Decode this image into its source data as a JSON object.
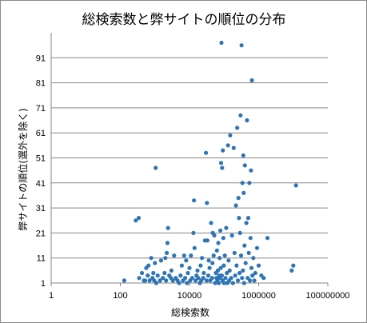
{
  "chart_data": {
    "type": "scatter",
    "title": "総検索数と弊サイトの順位の分布",
    "xlabel": "総検索数",
    "ylabel": "弊サイトの順位(選外を除く)",
    "x_scale": "log",
    "xlim": [
      1,
      100000000
    ],
    "ylim": [
      1,
      101
    ],
    "x_ticks": [
      "1",
      "100",
      "10000",
      "1000000",
      "100000000"
    ],
    "y_ticks": [
      "1",
      "11",
      "21",
      "31",
      "41",
      "51",
      "61",
      "71",
      "81",
      "91"
    ],
    "grid": "horizontal",
    "legend": "none",
    "marker_color": "#2e75b6",
    "series": [
      {
        "points": [
          [
            130,
            2
          ],
          [
            280,
            26
          ],
          [
            340,
            27
          ],
          [
            350,
            3
          ],
          [
            420,
            5
          ],
          [
            480,
            2
          ],
          [
            520,
            2
          ],
          [
            560,
            7
          ],
          [
            620,
            4
          ],
          [
            650,
            8
          ],
          [
            700,
            2
          ],
          [
            780,
            11
          ],
          [
            850,
            3
          ],
          [
            900,
            5
          ],
          [
            950,
            2
          ],
          [
            1000,
            9
          ],
          [
            1050,
            47
          ],
          [
            1100,
            1
          ],
          [
            1200,
            4
          ],
          [
            1400,
            2
          ],
          [
            1500,
            10
          ],
          [
            1700,
            3
          ],
          [
            1900,
            5
          ],
          [
            2000,
            11
          ],
          [
            2100,
            2
          ],
          [
            2200,
            13
          ],
          [
            2300,
            17
          ],
          [
            2400,
            23
          ],
          [
            2600,
            4
          ],
          [
            2900,
            3
          ],
          [
            3000,
            6
          ],
          [
            3300,
            2
          ],
          [
            3600,
            12
          ],
          [
            4000,
            3
          ],
          [
            4500,
            2
          ],
          [
            5000,
            1
          ],
          [
            5500,
            4
          ],
          [
            6000,
            8
          ],
          [
            6500,
            2
          ],
          [
            7000,
            12
          ],
          [
            7500,
            3
          ],
          [
            8000,
            10
          ],
          [
            8500,
            1
          ],
          [
            9000,
            5
          ],
          [
            10000,
            7
          ],
          [
            10500,
            2
          ],
          [
            11000,
            12
          ],
          [
            12000,
            3
          ],
          [
            13000,
            21
          ],
          [
            13500,
            34
          ],
          [
            14000,
            15
          ],
          [
            15000,
            2
          ],
          [
            16000,
            4
          ],
          [
            17000,
            6
          ],
          [
            18000,
            3
          ],
          [
            20000,
            1
          ],
          [
            21000,
            8
          ],
          [
            22000,
            2
          ],
          [
            23000,
            11
          ],
          [
            25000,
            3
          ],
          [
            26000,
            5
          ],
          [
            28000,
            18
          ],
          [
            30000,
            53
          ],
          [
            31000,
            2
          ],
          [
            32000,
            33
          ],
          [
            33000,
            18
          ],
          [
            35000,
            4
          ],
          [
            36000,
            10
          ],
          [
            38000,
            7
          ],
          [
            40000,
            2
          ],
          [
            42000,
            25
          ],
          [
            45000,
            3
          ],
          [
            46000,
            9
          ],
          [
            47000,
            21
          ],
          [
            50000,
            12
          ],
          [
            52000,
            20
          ],
          [
            55000,
            1
          ],
          [
            58000,
            5
          ],
          [
            60000,
            3
          ],
          [
            62000,
            14
          ],
          [
            64000,
            2
          ],
          [
            66000,
            6
          ],
          [
            68000,
            17
          ],
          [
            70000,
            1
          ],
          [
            72000,
            4
          ],
          [
            74000,
            11
          ],
          [
            76000,
            3
          ],
          [
            78000,
            22
          ],
          [
            80000,
            7
          ],
          [
            82000,
            49
          ],
          [
            84000,
            97
          ],
          [
            86000,
            4
          ],
          [
            88000,
            47
          ],
          [
            90000,
            2
          ],
          [
            92000,
            54
          ],
          [
            95000,
            19
          ],
          [
            98000,
            8
          ],
          [
            100000,
            1
          ],
          [
            105000,
            12
          ],
          [
            110000,
            3
          ],
          [
            115000,
            23
          ],
          [
            120000,
            5
          ],
          [
            125000,
            1
          ],
          [
            130000,
            56
          ],
          [
            135000,
            10
          ],
          [
            140000,
            2
          ],
          [
            145000,
            6
          ],
          [
            150000,
            60
          ],
          [
            160000,
            3
          ],
          [
            170000,
            20
          ],
          [
            180000,
            1
          ],
          [
            190000,
            55
          ],
          [
            200000,
            13
          ],
          [
            210000,
            4
          ],
          [
            220000,
            32
          ],
          [
            230000,
            8
          ],
          [
            240000,
            63
          ],
          [
            250000,
            2
          ],
          [
            260000,
            35
          ],
          [
            270000,
            27
          ],
          [
            280000,
            5
          ],
          [
            290000,
            21
          ],
          [
            300000,
            68
          ],
          [
            310000,
            12
          ],
          [
            320000,
            96
          ],
          [
            330000,
            3
          ],
          [
            340000,
            41
          ],
          [
            350000,
            6
          ],
          [
            360000,
            52
          ],
          [
            370000,
            37
          ],
          [
            380000,
            1
          ],
          [
            390000,
            16
          ],
          [
            400000,
            48
          ],
          [
            420000,
            9
          ],
          [
            440000,
            25
          ],
          [
            460000,
            66
          ],
          [
            480000,
            3
          ],
          [
            500000,
            27
          ],
          [
            520000,
            13
          ],
          [
            540000,
            41
          ],
          [
            560000,
            2
          ],
          [
            580000,
            19
          ],
          [
            600000,
            46
          ],
          [
            620000,
            7
          ],
          [
            640000,
            82
          ],
          [
            660000,
            4
          ],
          [
            700000,
            11
          ],
          [
            750000,
            2
          ],
          [
            800000,
            5
          ],
          [
            900000,
            15
          ],
          [
            1000000,
            8
          ],
          [
            1200000,
            4
          ],
          [
            1400000,
            3
          ],
          [
            1800000,
            19
          ],
          [
            9000000,
            6
          ],
          [
            10000000,
            8
          ],
          [
            12000000,
            40
          ]
        ]
      }
    ]
  }
}
